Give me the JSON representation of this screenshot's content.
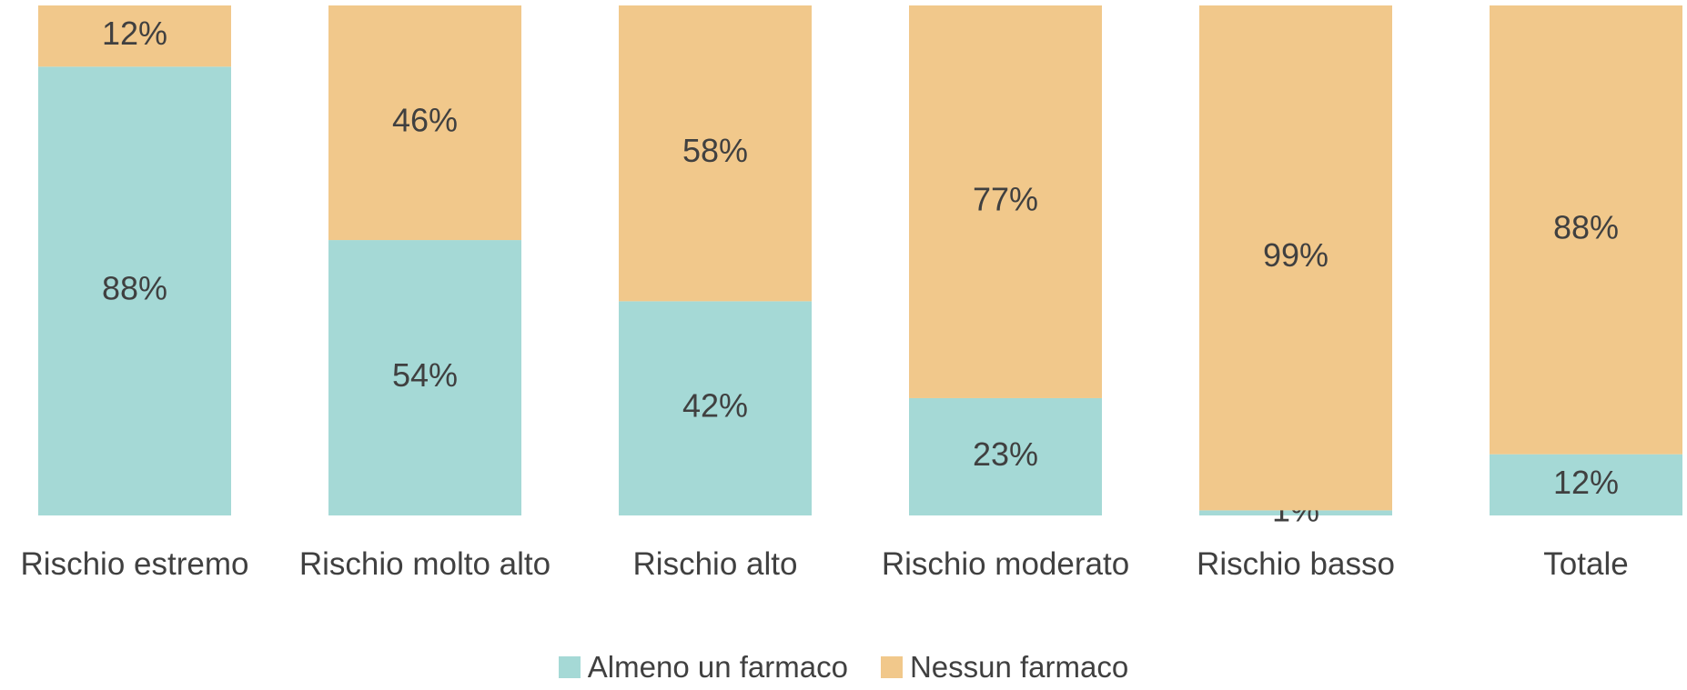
{
  "chart_data": {
    "type": "stacked_bar",
    "categories": [
      "Rischio estremo",
      "Rischio molto alto",
      "Rischio alto",
      "Rischio moderato",
      "Rischio basso",
      "Totale"
    ],
    "ylim": [
      0,
      100
    ],
    "legend": "bottom",
    "series": [
      {
        "name": "Almeno un farmaco",
        "color": "#a5d9d6",
        "values": [
          88,
          54,
          42,
          23,
          1,
          12
        ],
        "value_labels": [
          "88%",
          "54%",
          "42%",
          "23%",
          "1%",
          "12%"
        ]
      },
      {
        "name": "Nessun farmaco",
        "color": "#f1c88b",
        "values": [
          12,
          46,
          58,
          77,
          99,
          88
        ],
        "value_labels": [
          "12%",
          "46%",
          "58%",
          "77%",
          "99%",
          "88%"
        ]
      }
    ]
  }
}
